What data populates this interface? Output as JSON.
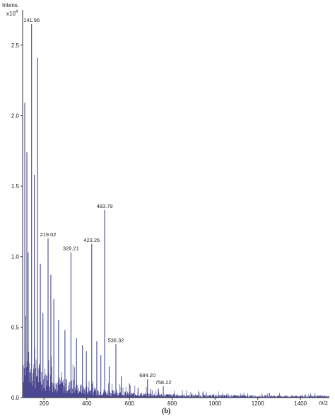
{
  "chart_data": {
    "type": "line",
    "ylabel": "Intens.",
    "y_multiplier": "x10",
    "y_multiplier_exp": "4",
    "xlabel": "m/z",
    "panel_label": "(b)",
    "xlim": [
      100,
      1535
    ],
    "ylim": [
      0,
      2.75
    ],
    "x_ticks": [
      200,
      400,
      600,
      800,
      1000,
      1200,
      1400
    ],
    "y_ticks": [
      0.0,
      0.5,
      1.0,
      1.5,
      2.0,
      2.5
    ],
    "y_tick_labels": [
      "0.0",
      "0.5",
      "1.0",
      "1.5",
      "2.0",
      "2.5"
    ],
    "spectrum_color": "#4b4891",
    "grid": false,
    "labeled_peaks": [
      {
        "mz": 141.96,
        "intensity": 2.65,
        "label": "141.96"
      },
      {
        "mz": 219.02,
        "intensity": 1.13,
        "label": "219.02"
      },
      {
        "mz": 326.21,
        "intensity": 1.03,
        "label": "326.21"
      },
      {
        "mz": 423.26,
        "intensity": 1.09,
        "label": "423.26"
      },
      {
        "mz": 483.79,
        "intensity": 1.33,
        "label": "483.79"
      },
      {
        "mz": 536.32,
        "intensity": 0.38,
        "label": "536.32"
      },
      {
        "mz": 684.2,
        "intensity": 0.13,
        "label": "684.20"
      },
      {
        "mz": 758.22,
        "intensity": 0.08,
        "label": "758.22"
      }
    ],
    "major_peaks": [
      {
        "mz": 110,
        "intensity": 2.09
      },
      {
        "mz": 120,
        "intensity": 1.74
      },
      {
        "mz": 126,
        "intensity": 1.03
      },
      {
        "mz": 155,
        "intensity": 1.58
      },
      {
        "mz": 170,
        "intensity": 2.41
      },
      {
        "mz": 183,
        "intensity": 0.95
      },
      {
        "mz": 195,
        "intensity": 0.6
      },
      {
        "mz": 232,
        "intensity": 0.87
      },
      {
        "mz": 246,
        "intensity": 0.7
      },
      {
        "mz": 268,
        "intensity": 0.55
      },
      {
        "mz": 298,
        "intensity": 0.48
      },
      {
        "mz": 352,
        "intensity": 0.42
      },
      {
        "mz": 380,
        "intensity": 0.37
      },
      {
        "mz": 398,
        "intensity": 0.33
      },
      {
        "mz": 447,
        "intensity": 0.4
      },
      {
        "mz": 466,
        "intensity": 0.3
      },
      {
        "mz": 505,
        "intensity": 0.22
      },
      {
        "mz": 562,
        "intensity": 0.15
      },
      {
        "mz": 600,
        "intensity": 0.1
      },
      {
        "mz": 640,
        "intensity": 0.07
      },
      {
        "mz": 700,
        "intensity": 0.06
      }
    ]
  }
}
